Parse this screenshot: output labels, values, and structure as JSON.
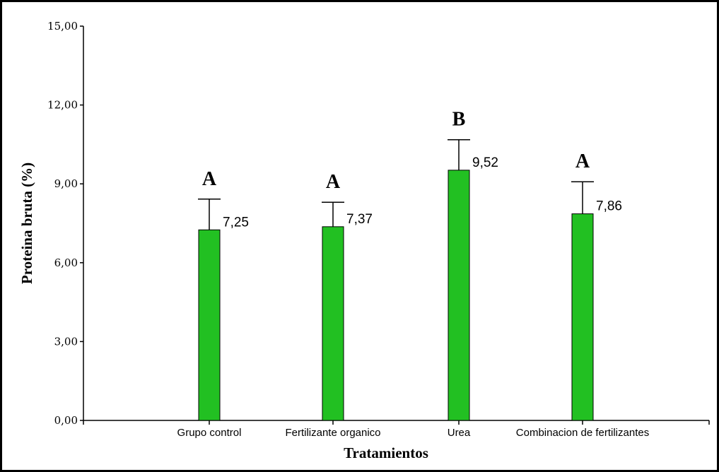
{
  "chart_data": {
    "type": "bar",
    "categories": [
      "Grupo control",
      "Fertilizante organico",
      "Urea",
      "Combinacion de fertilizantes"
    ],
    "values": [
      7.25,
      7.37,
      9.52,
      7.86
    ],
    "value_labels": [
      "7,25",
      "7,37",
      "9,52",
      "7,86"
    ],
    "error_upper": [
      8.42,
      8.3,
      10.68,
      9.08
    ],
    "significance_letters": [
      "A",
      "A",
      "B",
      "A"
    ],
    "title": "",
    "xlabel": "Tratamientos",
    "ylabel": "Proteina bruta (%)",
    "ylim": [
      0,
      15
    ],
    "yticks": [
      0,
      3,
      6,
      9,
      12,
      15
    ],
    "ytick_labels": [
      "0,00",
      "3,00",
      "6,00",
      "9,00",
      "12,00",
      "15,00"
    ],
    "grid": false,
    "bar_color": "#22c022",
    "bar_edge_color": "#000000"
  }
}
